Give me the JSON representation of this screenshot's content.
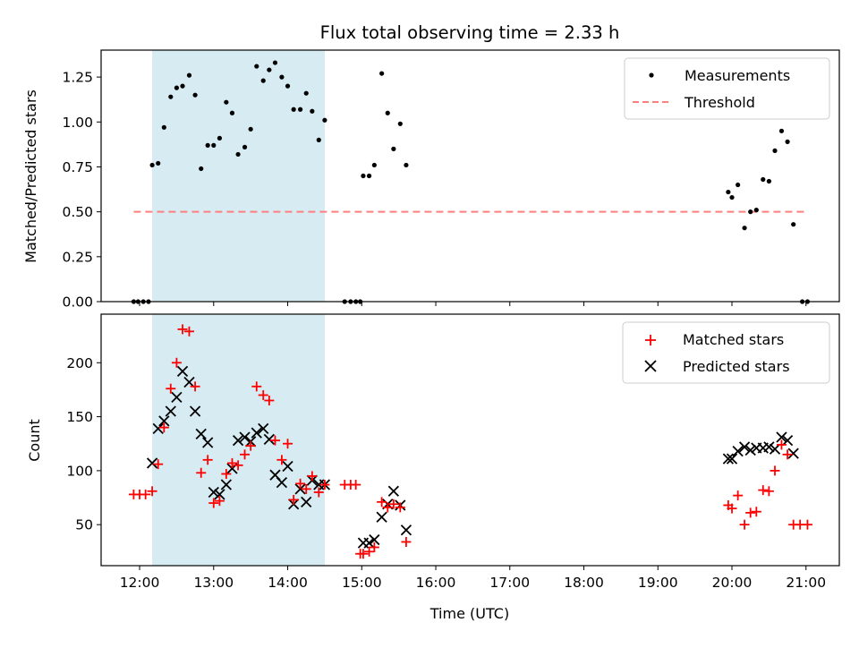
{
  "chart_data": [
    {
      "type": "scatter",
      "title": "Flux total observing time = 2.33 h",
      "xlabel": "",
      "ylabel": "Matched/Predicted stars",
      "ylim": [
        0,
        1.4
      ],
      "yticks": [
        "0.00",
        "0.25",
        "0.50",
        "0.75",
        "1.00",
        "1.25"
      ],
      "highlight_span": {
        "start_h": 12.17,
        "end_h": 14.5,
        "color": "#add8e6"
      },
      "legend": {
        "position": "top-right",
        "entries": [
          "Measurements",
          "Threshold"
        ]
      },
      "series": [
        {
          "name": "Measurements",
          "marker": "dot",
          "color": "#000000",
          "points": [
            [
              11.92,
              0
            ],
            [
              11.98,
              0
            ],
            [
              12.05,
              0
            ],
            [
              12.12,
              0
            ],
            [
              12.17,
              0.76
            ],
            [
              12.25,
              0.77
            ],
            [
              12.33,
              0.97
            ],
            [
              12.42,
              1.14
            ],
            [
              12.5,
              1.19
            ],
            [
              12.58,
              1.2
            ],
            [
              12.67,
              1.26
            ],
            [
              12.75,
              1.15
            ],
            [
              12.83,
              0.74
            ],
            [
              12.92,
              0.87
            ],
            [
              13.0,
              0.87
            ],
            [
              13.08,
              0.91
            ],
            [
              13.17,
              1.11
            ],
            [
              13.25,
              1.05
            ],
            [
              13.33,
              0.82
            ],
            [
              13.42,
              0.86
            ],
            [
              13.5,
              0.96
            ],
            [
              13.58,
              1.31
            ],
            [
              13.67,
              1.23
            ],
            [
              13.75,
              1.29
            ],
            [
              13.83,
              1.33
            ],
            [
              13.92,
              1.25
            ],
            [
              14.0,
              1.2
            ],
            [
              14.08,
              1.07
            ],
            [
              14.17,
              1.07
            ],
            [
              14.25,
              1.16
            ],
            [
              14.33,
              1.06
            ],
            [
              14.42,
              0.9
            ],
            [
              14.5,
              1.01
            ],
            [
              14.77,
              0
            ],
            [
              14.85,
              0
            ],
            [
              14.92,
              0
            ],
            [
              14.98,
              0
            ],
            [
              15.02,
              0.7
            ],
            [
              15.1,
              0.7
            ],
            [
              15.17,
              0.76
            ],
            [
              15.27,
              1.27
            ],
            [
              15.35,
              1.05
            ],
            [
              15.43,
              0.85
            ],
            [
              15.52,
              0.99
            ],
            [
              15.6,
              0.76
            ],
            [
              19.95,
              0.61
            ],
            [
              20.0,
              0.58
            ],
            [
              20.08,
              0.65
            ],
            [
              20.17,
              0.41
            ],
            [
              20.25,
              0.5
            ],
            [
              20.33,
              0.51
            ],
            [
              20.42,
              0.68
            ],
            [
              20.5,
              0.67
            ],
            [
              20.58,
              0.84
            ],
            [
              20.67,
              0.95
            ],
            [
              20.75,
              0.89
            ],
            [
              20.83,
              0.43
            ],
            [
              20.95,
              0
            ],
            [
              21.02,
              0
            ]
          ]
        },
        {
          "name": "Threshold",
          "marker": "dashed-line",
          "color": "#ff7f7f",
          "points": [
            [
              11.92,
              0.5
            ],
            [
              21.02,
              0.5
            ]
          ]
        }
      ]
    },
    {
      "type": "scatter",
      "title": "",
      "xlabel": "Time (UTC)",
      "ylabel": "Count",
      "ylim": [
        12,
        245
      ],
      "yticks": [
        "50",
        "100",
        "150",
        "200"
      ],
      "xlim": [
        11.48,
        21.45
      ],
      "xticks": [
        "12:00",
        "13:00",
        "14:00",
        "15:00",
        "16:00",
        "17:00",
        "18:00",
        "19:00",
        "20:00",
        "21:00"
      ],
      "highlight_span": {
        "start_h": 12.17,
        "end_h": 14.5,
        "color": "#add8e6"
      },
      "legend": {
        "position": "top-right",
        "entries": [
          "Matched stars",
          "Predicted stars"
        ]
      },
      "series": [
        {
          "name": "Matched stars",
          "marker": "plus",
          "color": "#ff0000",
          "points": [
            [
              11.92,
              78
            ],
            [
              12.0,
              78
            ],
            [
              12.08,
              78
            ],
            [
              12.17,
              81
            ],
            [
              12.25,
              106
            ],
            [
              12.33,
              140
            ],
            [
              12.42,
              176
            ],
            [
              12.5,
              200
            ],
            [
              12.58,
              231
            ],
            [
              12.67,
              229
            ],
            [
              12.75,
              178
            ],
            [
              12.83,
              98
            ],
            [
              12.92,
              110
            ],
            [
              13.0,
              70
            ],
            [
              13.08,
              72
            ],
            [
              13.17,
              97
            ],
            [
              13.25,
              107
            ],
            [
              13.33,
              105
            ],
            [
              13.42,
              115
            ],
            [
              13.5,
              123
            ],
            [
              13.58,
              178
            ],
            [
              13.67,
              170
            ],
            [
              13.75,
              165
            ],
            [
              13.83,
              128
            ],
            [
              13.92,
              110
            ],
            [
              14.0,
              125
            ],
            [
              14.08,
              73
            ],
            [
              14.17,
              88
            ],
            [
              14.25,
              83
            ],
            [
              14.33,
              95
            ],
            [
              14.42,
              80
            ],
            [
              14.5,
              87
            ],
            [
              14.77,
              87
            ],
            [
              14.85,
              87
            ],
            [
              14.92,
              87
            ],
            [
              14.98,
              23
            ],
            [
              15.02,
              23
            ],
            [
              15.1,
              25
            ],
            [
              15.17,
              29
            ],
            [
              15.27,
              71
            ],
            [
              15.35,
              66
            ],
            [
              15.43,
              69
            ],
            [
              15.52,
              66
            ],
            [
              15.6,
              34
            ],
            [
              19.95,
              68
            ],
            [
              20.0,
              65
            ],
            [
              20.08,
              77
            ],
            [
              20.17,
              50
            ],
            [
              20.25,
              61
            ],
            [
              20.33,
              62
            ],
            [
              20.42,
              82
            ],
            [
              20.5,
              81
            ],
            [
              20.58,
              100
            ],
            [
              20.67,
              124
            ],
            [
              20.75,
              115
            ],
            [
              20.83,
              50
            ],
            [
              20.92,
              50
            ],
            [
              21.02,
              50
            ]
          ]
        },
        {
          "name": "Predicted stars",
          "marker": "x",
          "color": "#000000",
          "points": [
            [
              12.17,
              107
            ],
            [
              12.25,
              139
            ],
            [
              12.33,
              146
            ],
            [
              12.42,
              155
            ],
            [
              12.5,
              168
            ],
            [
              12.58,
              192
            ],
            [
              12.67,
              182
            ],
            [
              12.75,
              155
            ],
            [
              12.83,
              134
            ],
            [
              12.92,
              126
            ],
            [
              13.0,
              80
            ],
            [
              13.08,
              78
            ],
            [
              13.17,
              87
            ],
            [
              13.25,
              102
            ],
            [
              13.33,
              128
            ],
            [
              13.42,
              131
            ],
            [
              13.5,
              127
            ],
            [
              13.58,
              135
            ],
            [
              13.67,
              139
            ],
            [
              13.75,
              129
            ],
            [
              13.83,
              96
            ],
            [
              13.92,
              89
            ],
            [
              14.0,
              104
            ],
            [
              14.08,
              69
            ],
            [
              14.17,
              83
            ],
            [
              14.25,
              71
            ],
            [
              14.33,
              91
            ],
            [
              14.42,
              87
            ],
            [
              14.5,
              87
            ],
            [
              15.02,
              33
            ],
            [
              15.1,
              33
            ],
            [
              15.17,
              36
            ],
            [
              15.27,
              57
            ],
            [
              15.35,
              69
            ],
            [
              15.43,
              81
            ],
            [
              15.52,
              68
            ],
            [
              15.6,
              45
            ],
            [
              19.95,
              111
            ],
            [
              20.0,
              111
            ],
            [
              20.08,
              118
            ],
            [
              20.17,
              122
            ],
            [
              20.25,
              119
            ],
            [
              20.33,
              121
            ],
            [
              20.42,
              121
            ],
            [
              20.5,
              122
            ],
            [
              20.58,
              120
            ],
            [
              20.67,
              131
            ],
            [
              20.75,
              128
            ],
            [
              20.83,
              116
            ]
          ]
        }
      ]
    }
  ]
}
